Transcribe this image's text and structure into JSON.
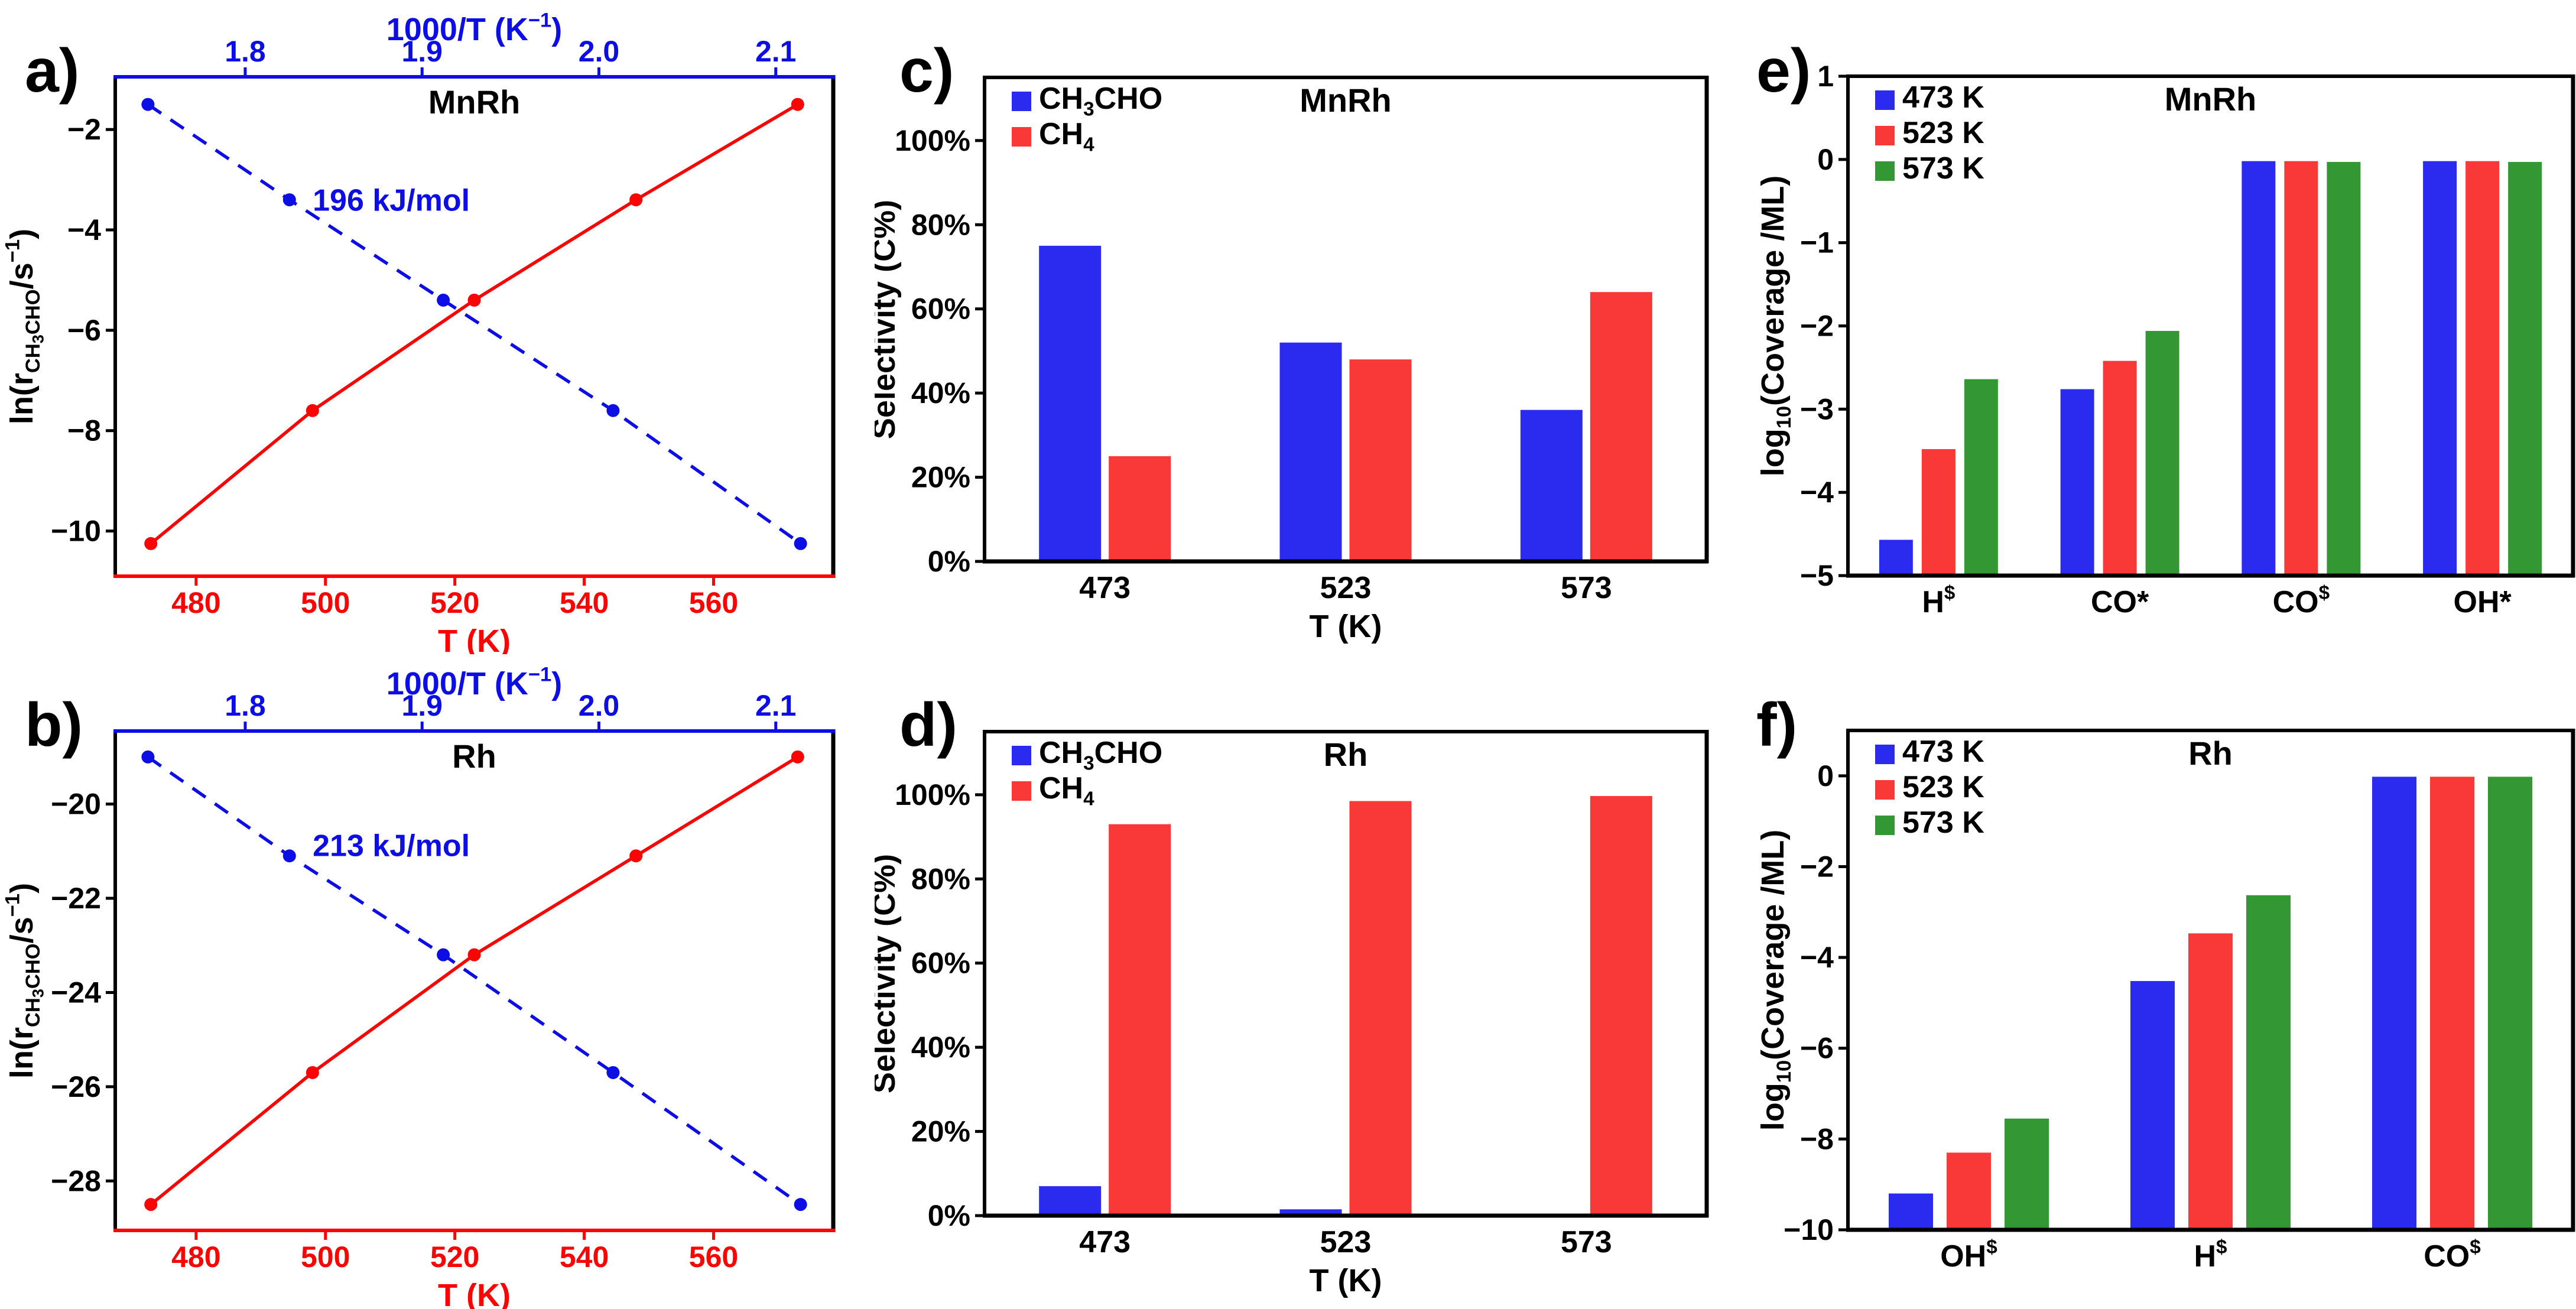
{
  "colors": {
    "bar_blue": "#2B2BF0",
    "bar_red": "#F93838",
    "bar_green": "#339733",
    "line_blue": "#0D0DE6",
    "line_red": "#FA0404",
    "black": "#000000"
  },
  "chart_data": [
    {
      "id": "a",
      "panel_label": "a)",
      "type": "line",
      "title": "MnRh",
      "top_axis": {
        "label_parts": [
          {
            "t": "1000/T (K"
          },
          {
            "t": "−1",
            "sup": true
          },
          {
            "t": ")"
          }
        ],
        "tick_values": [
          1.8,
          1.9,
          2.0,
          2.1
        ],
        "tick_labels": [
          "1.8",
          "1.9",
          "2.0",
          "2.1"
        ],
        "domain": [
          1.7265,
          2.1325
        ],
        "color": "line_blue"
      },
      "bottom_axis": {
        "label_parts": [
          {
            "t": "T (K)"
          }
        ],
        "tick_values": [
          480,
          500,
          520,
          540,
          560
        ],
        "tick_labels": [
          "480",
          "500",
          "520",
          "540",
          "560"
        ],
        "domain": [
          467.5,
          578.5
        ],
        "color": "line_red"
      },
      "y_axis": {
        "label_parts": [
          {
            "t": "ln(r"
          },
          {
            "t": "CH",
            "sub": true
          },
          {
            "t": "3",
            "sub2": true
          },
          {
            "t": "CHO",
            "sub": true
          },
          {
            "t": "/s"
          },
          {
            "t": "−1",
            "sup": true
          },
          {
            "t": ")"
          }
        ],
        "tick_values": [
          -2,
          -4,
          -6,
          -8,
          -10
        ],
        "tick_labels": [
          "−2",
          "−4",
          "−6",
          "−8",
          "−10"
        ],
        "domain": [
          -10.9,
          -0.95
        ]
      },
      "series": [
        {
          "name": "ln-rate-vs-1000-over-T",
          "axis": "top",
          "color": "line_blue",
          "dashed": true,
          "points": [
            [
              1.745,
              -1.5
            ],
            [
              1.825,
              -3.4
            ],
            [
              1.912,
              -5.4
            ],
            [
              2.008,
              -7.6
            ],
            [
              2.114,
              -10.25
            ]
          ]
        },
        {
          "name": "ln-rate-vs-T",
          "axis": "bottom",
          "color": "line_red",
          "dashed": false,
          "points": [
            [
              473,
              -10.25
            ],
            [
              498,
              -7.6
            ],
            [
              523,
              -5.4
            ],
            [
              548,
              -3.4
            ],
            [
              573,
              -1.5
            ]
          ]
        }
      ],
      "annotation": {
        "text": "196 kJ/mol",
        "fx": 0.275,
        "fy": 0.268,
        "color": "line_blue"
      }
    },
    {
      "id": "b",
      "panel_label": "b)",
      "type": "line",
      "title": "Rh",
      "top_axis": {
        "label_parts": [
          {
            "t": "1000/T (K"
          },
          {
            "t": "−1",
            "sup": true
          },
          {
            "t": ")"
          }
        ],
        "tick_values": [
          1.8,
          1.9,
          2.0,
          2.1
        ],
        "tick_labels": [
          "1.8",
          "1.9",
          "2.0",
          "2.1"
        ],
        "domain": [
          1.7265,
          2.1325
        ],
        "color": "line_blue"
      },
      "bottom_axis": {
        "label_parts": [
          {
            "t": "T (K)"
          }
        ],
        "tick_values": [
          480,
          500,
          520,
          540,
          560
        ],
        "tick_labels": [
          "480",
          "500",
          "520",
          "540",
          "560"
        ],
        "domain": [
          467.5,
          578.5
        ],
        "color": "line_red"
      },
      "y_axis": {
        "label_parts": [
          {
            "t": "ln(r"
          },
          {
            "t": "CH",
            "sub": true
          },
          {
            "t": "3",
            "sub2": true
          },
          {
            "t": "CHO",
            "sub": true
          },
          {
            "t": "/s"
          },
          {
            "t": "−1",
            "sup": true
          },
          {
            "t": ")"
          }
        ],
        "tick_values": [
          -20,
          -22,
          -24,
          -26,
          -28
        ],
        "tick_labels": [
          "−20",
          "−22",
          "−24",
          "−26",
          "−28"
        ],
        "domain": [
          -29.05,
          -18.45
        ]
      },
      "series": [
        {
          "name": "ln-rate-vs-1000-over-T",
          "axis": "top",
          "color": "line_blue",
          "dashed": true,
          "points": [
            [
              1.745,
              -19.0
            ],
            [
              1.825,
              -21.1
            ],
            [
              1.912,
              -23.2
            ],
            [
              2.008,
              -25.7
            ],
            [
              2.114,
              -28.5
            ]
          ]
        },
        {
          "name": "ln-rate-vs-T",
          "axis": "bottom",
          "color": "line_red",
          "dashed": false,
          "points": [
            [
              473,
              -28.5
            ],
            [
              498,
              -25.7
            ],
            [
              523,
              -23.2
            ],
            [
              548,
              -21.1
            ],
            [
              573,
              -19.0
            ]
          ]
        }
      ],
      "annotation": {
        "text": "213 kJ/mol",
        "fx": 0.275,
        "fy": 0.25,
        "color": "line_blue"
      }
    },
    {
      "id": "c",
      "panel_label": "c)",
      "type": "bar",
      "title": "MnRh",
      "x_axis": {
        "label_parts": [
          {
            "t": "T (K)"
          }
        ],
        "categories": [
          [
            {
              "t": "473"
            }
          ],
          [
            {
              "t": "523"
            }
          ],
          [
            {
              "t": "573"
            }
          ]
        ]
      },
      "y_axis": {
        "label_parts": [
          {
            "t": "Selectivity (C%)"
          }
        ],
        "tick_values": [
          0,
          20,
          40,
          60,
          80,
          100
        ],
        "tick_labels": [
          "0%",
          "20%",
          "40%",
          "60%",
          "80%",
          "100%"
        ],
        "domain": [
          0,
          115
        ]
      },
      "legend": [
        {
          "label_parts": [
            {
              "t": "CH"
            },
            {
              "t": "3",
              "sub": true
            },
            {
              "t": "CHO"
            }
          ],
          "color": "bar_blue"
        },
        {
          "label_parts": [
            {
              "t": "CH"
            },
            {
              "t": "4",
              "sub": true
            }
          ],
          "color": "bar_red"
        }
      ],
      "series": [
        {
          "name": "CH3CHO",
          "color": "bar_blue",
          "values": [
            75,
            52,
            36
          ]
        },
        {
          "name": "CH4",
          "color": "bar_red",
          "values": [
            25,
            48,
            64
          ]
        }
      ],
      "bar": {
        "width": 105,
        "gap": 13
      }
    },
    {
      "id": "d",
      "panel_label": "d)",
      "type": "bar",
      "title": "Rh",
      "x_axis": {
        "label_parts": [
          {
            "t": "T (K)"
          }
        ],
        "categories": [
          [
            {
              "t": "473"
            }
          ],
          [
            {
              "t": "523"
            }
          ],
          [
            {
              "t": "573"
            }
          ]
        ]
      },
      "y_axis": {
        "label_parts": [
          {
            "t": "Selectivity (C%)"
          }
        ],
        "tick_values": [
          0,
          20,
          40,
          60,
          80,
          100
        ],
        "tick_labels": [
          "0%",
          "20%",
          "40%",
          "60%",
          "80%",
          "100%"
        ],
        "domain": [
          0,
          115
        ]
      },
      "legend": [
        {
          "label_parts": [
            {
              "t": "CH"
            },
            {
              "t": "3",
              "sub": true
            },
            {
              "t": "CHO"
            }
          ],
          "color": "bar_blue"
        },
        {
          "label_parts": [
            {
              "t": "CH"
            },
            {
              "t": "4",
              "sub": true
            }
          ],
          "color": "bar_red"
        }
      ],
      "series": [
        {
          "name": "CH3CHO",
          "color": "bar_blue",
          "values": [
            7,
            1.5,
            0.3
          ]
        },
        {
          "name": "CH4",
          "color": "bar_red",
          "values": [
            93,
            98.5,
            99.7
          ]
        }
      ],
      "bar": {
        "width": 105,
        "gap": 13
      }
    },
    {
      "id": "e",
      "panel_label": "e)",
      "type": "bar",
      "title": "MnRh",
      "x_axis": {
        "categories": [
          [
            {
              "t": "H"
            },
            {
              "t": "$",
              "sup": true
            }
          ],
          [
            {
              "t": "CO*"
            }
          ],
          [
            {
              "t": "CO"
            },
            {
              "t": "$",
              "sup": true
            }
          ],
          [
            {
              "t": "OH*"
            }
          ]
        ]
      },
      "y_axis": {
        "label_parts": [
          {
            "t": "log"
          },
          {
            "t": "10",
            "sub": true
          },
          {
            "t": "(Coverage /ML)"
          }
        ],
        "tick_values": [
          1,
          0,
          -1,
          -2,
          -3,
          -4,
          -5
        ],
        "tick_labels": [
          "1",
          "0",
          "−1",
          "−2",
          "−3",
          "−4",
          "−5"
        ],
        "domain": [
          -5,
          1
        ]
      },
      "legend": [
        {
          "label_parts": [
            {
              "t": "473 K"
            }
          ],
          "color": "bar_blue"
        },
        {
          "label_parts": [
            {
              "t": "523 K"
            }
          ],
          "color": "bar_red"
        },
        {
          "label_parts": [
            {
              "t": "573 K"
            }
          ],
          "color": "bar_green"
        }
      ],
      "series": [
        {
          "name": "473K",
          "color": "bar_blue",
          "values": [
            -4.57,
            -2.76,
            -0.02,
            -0.02
          ]
        },
        {
          "name": "523K",
          "color": "bar_red",
          "values": [
            -3.48,
            -2.42,
            -0.02,
            -0.02
          ]
        },
        {
          "name": "573K",
          "color": "bar_green",
          "values": [
            -2.64,
            -2.06,
            -0.03,
            -0.03
          ]
        }
      ],
      "bar": {
        "width": 57,
        "gap": 15
      }
    },
    {
      "id": "f",
      "panel_label": "f)",
      "type": "bar",
      "title": "Rh",
      "x_axis": {
        "categories": [
          [
            {
              "t": "OH"
            },
            {
              "t": "$",
              "sup": true
            }
          ],
          [
            {
              "t": "H"
            },
            {
              "t": "$",
              "sup": true
            }
          ],
          [
            {
              "t": "CO"
            },
            {
              "t": "$",
              "sup": true
            }
          ]
        ]
      },
      "y_axis": {
        "label_parts": [
          {
            "t": "log"
          },
          {
            "t": "10",
            "sub": true
          },
          {
            "t": "(Coverage /ML)"
          }
        ],
        "tick_values": [
          0,
          -2,
          -4,
          -6,
          -8,
          -10
        ],
        "tick_labels": [
          "0",
          "−2",
          "−4",
          "−6",
          "−8",
          "−10"
        ],
        "domain": [
          -10,
          1
        ]
      },
      "legend": [
        {
          "label_parts": [
            {
              "t": "473 K"
            }
          ],
          "color": "bar_blue"
        },
        {
          "label_parts": [
            {
              "t": "523 K"
            }
          ],
          "color": "bar_red"
        },
        {
          "label_parts": [
            {
              "t": "573 K"
            }
          ],
          "color": "bar_green"
        }
      ],
      "series": [
        {
          "name": "473K",
          "color": "bar_blue",
          "values": [
            -9.2,
            -4.52,
            -0.02
          ]
        },
        {
          "name": "523K",
          "color": "bar_red",
          "values": [
            -8.3,
            -3.47,
            -0.02
          ]
        },
        {
          "name": "573K",
          "color": "bar_green",
          "values": [
            -7.55,
            -2.63,
            -0.02
          ]
        }
      ],
      "bar": {
        "width": 75,
        "gap": 23
      }
    }
  ]
}
